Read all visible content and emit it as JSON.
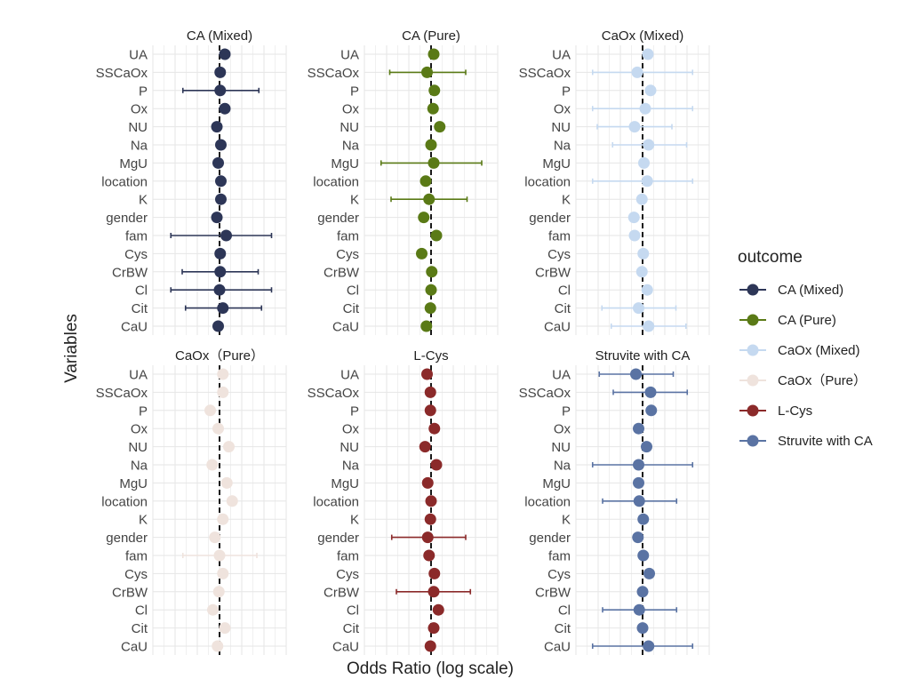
{
  "chart_data": {
    "type": "forest",
    "xlabel": "Odds Ratio (log scale)",
    "ylabel": "Variables",
    "x_scale": "log",
    "x_values_note": "positions are log-odds relative to the reference line",
    "xlim": [
      -1,
      1
    ],
    "ref_line": 0,
    "grid": true,
    "legend_position": "right",
    "legend_title": "outcome",
    "variables": [
      "UA",
      "SSCaOx",
      "P",
      "Ox",
      "NU",
      "Na",
      "MgU",
      "location",
      "K",
      "gender",
      "fam",
      "Cys",
      "CrBW",
      "Cl",
      "Cit",
      "CaU"
    ],
    "series": [
      {
        "name": "CA (Mixed)",
        "color": "#2d3657",
        "points": [
          {
            "var": "UA",
            "x": 0.08
          },
          {
            "var": "SSCaOx",
            "x": 0.01
          },
          {
            "var": "P",
            "x": 0.01,
            "lo": -0.55,
            "hi": 0.59
          },
          {
            "var": "Ox",
            "x": 0.08
          },
          {
            "var": "NU",
            "x": -0.04
          },
          {
            "var": "Na",
            "x": 0.02
          },
          {
            "var": "MgU",
            "x": -0.02
          },
          {
            "var": "location",
            "x": 0.02
          },
          {
            "var": "K",
            "x": 0.02
          },
          {
            "var": "gender",
            "x": -0.04
          },
          {
            "var": "fam",
            "x": 0.1,
            "lo": -0.73,
            "hi": 0.78
          },
          {
            "var": "Cys",
            "x": 0.01
          },
          {
            "var": "CrBW",
            "x": 0.01,
            "lo": -0.56,
            "hi": 0.58
          },
          {
            "var": "Cl",
            "x": 0.0,
            "lo": -0.73,
            "hi": 0.78
          },
          {
            "var": "Cit",
            "x": 0.05,
            "lo": -0.51,
            "hi": 0.63
          },
          {
            "var": "CaU",
            "x": -0.02
          }
        ]
      },
      {
        "name": "CA (Pure)",
        "color": "#5a7a16",
        "points": [
          {
            "var": "UA",
            "x": 0.04
          },
          {
            "var": "SSCaOx",
            "x": -0.06,
            "lo": -0.62,
            "hi": 0.52
          },
          {
            "var": "P",
            "x": 0.05
          },
          {
            "var": "Ox",
            "x": 0.03
          },
          {
            "var": "NU",
            "x": 0.13
          },
          {
            "var": "Na",
            "x": 0.0
          },
          {
            "var": "MgU",
            "x": 0.04,
            "lo": -0.75,
            "hi": 0.76
          },
          {
            "var": "location",
            "x": -0.08
          },
          {
            "var": "K",
            "x": -0.03,
            "lo": -0.6,
            "hi": 0.54
          },
          {
            "var": "gender",
            "x": -0.11
          },
          {
            "var": "fam",
            "x": 0.08
          },
          {
            "var": "Cys",
            "x": -0.14
          },
          {
            "var": "CrBW",
            "x": 0.01
          },
          {
            "var": "Cl",
            "x": 0.0
          },
          {
            "var": "Cit",
            "x": -0.01
          },
          {
            "var": "CaU",
            "x": -0.07
          }
        ]
      },
      {
        "name": "CaOx (Mixed)",
        "color": "#c5d9f0",
        "points": [
          {
            "var": "UA",
            "x": 0.08
          },
          {
            "var": "SSCaOx",
            "x": -0.08,
            "lo": -0.75,
            "hi": 0.75
          },
          {
            "var": "P",
            "x": 0.12
          },
          {
            "var": "Ox",
            "x": 0.04,
            "lo": -0.75,
            "hi": 0.75
          },
          {
            "var": "NU",
            "x": -0.12,
            "lo": -0.68,
            "hi": 0.44
          },
          {
            "var": "Na",
            "x": 0.09,
            "lo": -0.45,
            "hi": 0.66
          },
          {
            "var": "MgU",
            "x": 0.02
          },
          {
            "var": "location",
            "x": 0.07,
            "lo": -0.75,
            "hi": 0.75
          },
          {
            "var": "K",
            "x": -0.01
          },
          {
            "var": "gender",
            "x": -0.13
          },
          {
            "var": "fam",
            "x": -0.12
          },
          {
            "var": "Cys",
            "x": 0.01
          },
          {
            "var": "CrBW",
            "x": -0.01
          },
          {
            "var": "Cl",
            "x": 0.07
          },
          {
            "var": "Cit",
            "x": -0.06,
            "lo": -0.61,
            "hi": 0.5
          },
          {
            "var": "CaU",
            "x": 0.09,
            "lo": -0.47,
            "hi": 0.65
          }
        ]
      },
      {
        "name": "CaOx（Pure）",
        "color": "#efe3dd",
        "points": [
          {
            "var": "UA",
            "x": 0.05
          },
          {
            "var": "SSCaOx",
            "x": 0.05
          },
          {
            "var": "P",
            "x": -0.14
          },
          {
            "var": "Ox",
            "x": -0.02
          },
          {
            "var": "NU",
            "x": 0.14
          },
          {
            "var": "Na",
            "x": -0.11
          },
          {
            "var": "MgU",
            "x": 0.11
          },
          {
            "var": "location",
            "x": 0.19
          },
          {
            "var": "K",
            "x": 0.05
          },
          {
            "var": "gender",
            "x": -0.07
          },
          {
            "var": "fam",
            "x": 0.0,
            "lo": -0.55,
            "hi": 0.56
          },
          {
            "var": "Cys",
            "x": 0.05
          },
          {
            "var": "CrBW",
            "x": -0.01
          },
          {
            "var": "Cl",
            "x": -0.1
          },
          {
            "var": "Cit",
            "x": 0.08
          },
          {
            "var": "CaU",
            "x": -0.03
          }
        ]
      },
      {
        "name": "L-Cys",
        "color": "#8b2a2a",
        "points": [
          {
            "var": "UA",
            "x": -0.06
          },
          {
            "var": "SSCaOx",
            "x": -0.01
          },
          {
            "var": "P",
            "x": -0.01
          },
          {
            "var": "Ox",
            "x": 0.05
          },
          {
            "var": "NU",
            "x": -0.09
          },
          {
            "var": "Na",
            "x": 0.08
          },
          {
            "var": "MgU",
            "x": -0.05
          },
          {
            "var": "location",
            "x": 0.0
          },
          {
            "var": "K",
            "x": -0.01
          },
          {
            "var": "gender",
            "x": -0.05,
            "lo": -0.59,
            "hi": 0.52
          },
          {
            "var": "fam",
            "x": -0.03
          },
          {
            "var": "Cys",
            "x": 0.05
          },
          {
            "var": "CrBW",
            "x": 0.04,
            "lo": -0.52,
            "hi": 0.59
          },
          {
            "var": "Cl",
            "x": 0.11
          },
          {
            "var": "Cit",
            "x": 0.04
          },
          {
            "var": "CaU",
            "x": -0.01
          }
        ]
      },
      {
        "name": "Struvite with CA",
        "color": "#5a73a3",
        "points": [
          {
            "var": "UA",
            "x": -0.1,
            "lo": -0.65,
            "hi": 0.46
          },
          {
            "var": "SSCaOx",
            "x": 0.12,
            "lo": -0.44,
            "hi": 0.67
          },
          {
            "var": "P",
            "x": 0.13
          },
          {
            "var": "Ox",
            "x": -0.06
          },
          {
            "var": "NU",
            "x": 0.06
          },
          {
            "var": "Na",
            "x": -0.06,
            "lo": -0.75,
            "hi": 0.75
          },
          {
            "var": "MgU",
            "x": -0.06
          },
          {
            "var": "location",
            "x": -0.05,
            "lo": -0.6,
            "hi": 0.51
          },
          {
            "var": "K",
            "x": 0.01
          },
          {
            "var": "gender",
            "x": -0.07
          },
          {
            "var": "fam",
            "x": 0.01
          },
          {
            "var": "Cys",
            "x": 0.1
          },
          {
            "var": "CrBW",
            "x": 0.0
          },
          {
            "var": "Cl",
            "x": -0.05,
            "lo": -0.6,
            "hi": 0.51
          },
          {
            "var": "Cit",
            "x": 0.0
          },
          {
            "var": "CaU",
            "x": 0.09,
            "lo": -0.75,
            "hi": 0.75
          }
        ]
      }
    ]
  }
}
